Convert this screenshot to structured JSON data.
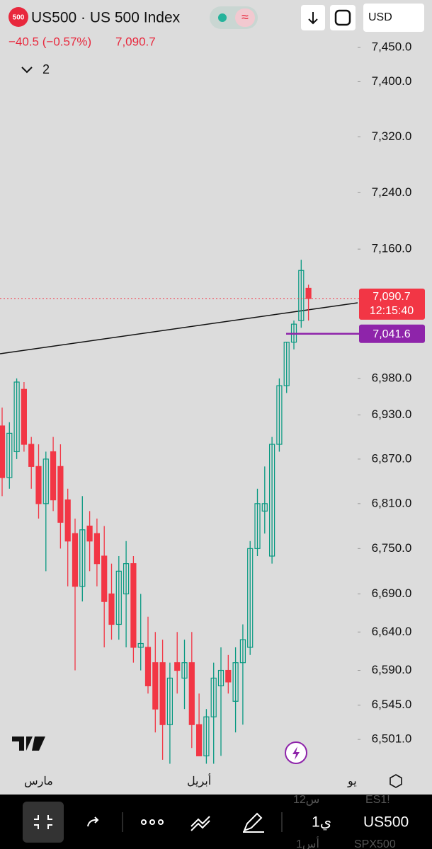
{
  "header": {
    "badge": "500",
    "title": "US500 · US 500 Index",
    "change": "−40.5 (−0.57%)",
    "price": "7,090.7",
    "indicators": "2",
    "currency": "USD"
  },
  "chart_data": {
    "type": "candlestick",
    "log_scale": true,
    "categories": [
      null,
      null,
      null,
      null,
      null,
      "مارس",
      null,
      null,
      null,
      null,
      null,
      null,
      null,
      null,
      null,
      null,
      null,
      null,
      null,
      null,
      null,
      null,
      null,
      null,
      null,
      null,
      null,
      "أبريل",
      null,
      null,
      null,
      null,
      null,
      null,
      null,
      null,
      null,
      null,
      null,
      null,
      null,
      null,
      null,
      null,
      null,
      null,
      null,
      null,
      "يو"
    ],
    "open": [
      6915,
      6845,
      6880,
      6965,
      6890,
      6860,
      6810,
      6880,
      6860,
      6815,
      6770,
      6700,
      6780,
      6770,
      6740,
      6690,
      6650,
      6690,
      6730,
      6620,
      6620,
      6600,
      6600,
      6520,
      6600,
      6580,
      6600,
      6520,
      6480,
      6530,
      6570,
      6590,
      6550,
      6600,
      6620,
      6750,
      6800,
      6740,
      6890,
      6970,
      7030,
      7060,
      7105,
      null,
      null,
      null,
      null,
      null,
      null
    ],
    "high": [
      6940,
      6920,
      6980,
      6975,
      6900,
      6890,
      6880,
      6900,
      6890,
      6830,
      6790,
      6820,
      6800,
      6790,
      6780,
      6730,
      6740,
      6760,
      6740,
      6690,
      6660,
      6640,
      6630,
      6600,
      6640,
      6630,
      6640,
      6560,
      6540,
      6600,
      6620,
      6610,
      6620,
      6650,
      6760,
      6830,
      6860,
      6900,
      6980,
      7030,
      7060,
      7145,
      7110,
      null,
      null,
      null,
      null,
      null,
      null
    ],
    "low": [
      6820,
      6830,
      6870,
      6880,
      6830,
      6790,
      6720,
      6800,
      6750,
      6700,
      6590,
      6680,
      6720,
      6700,
      6620,
      6630,
      6630,
      6620,
      6600,
      6590,
      6560,
      6510,
      6475,
      6470,
      6560,
      6540,
      6490,
      6490,
      6470,
      6470,
      6480,
      6560,
      6510,
      6520,
      6610,
      6740,
      6770,
      6730,
      6880,
      6960,
      7020,
      7050,
      7060,
      null,
      null,
      null,
      null,
      null,
      null
    ],
    "close": [
      6845,
      6905,
      6975,
      6890,
      6860,
      6810,
      6870,
      6815,
      6785,
      6760,
      6700,
      6775,
      6760,
      6730,
      6680,
      6650,
      6720,
      6730,
      6620,
      6625,
      6570,
      6540,
      6520,
      6580,
      6590,
      6600,
      6520,
      6480,
      6530,
      6580,
      6590,
      6575,
      6600,
      6630,
      6750,
      6810,
      6810,
      6890,
      6970,
      7030,
      7055,
      7130,
      7090.7,
      null,
      null,
      null,
      null,
      null,
      null
    ],
    "up_color": "#089981",
    "down_color": "#f23645",
    "ylim": [
      6465,
      7520
    ],
    "yticks": [
      {
        "value": 6501,
        "label": "6,501.0"
      },
      {
        "value": 6545,
        "label": "6,545.0"
      },
      {
        "value": 6590,
        "label": "6,590.0"
      },
      {
        "value": 6640,
        "label": "6,640.0"
      },
      {
        "value": 6690,
        "label": "6,690.0"
      },
      {
        "value": 6750,
        "label": "6,750.0"
      },
      {
        "value": 6810,
        "label": "6,810.0"
      },
      {
        "value": 6870,
        "label": "6,870.0"
      },
      {
        "value": 6930,
        "label": "6,930.0"
      },
      {
        "value": 6980,
        "label": "6,980.0"
      },
      {
        "value": 7160,
        "label": "7,160.0"
      },
      {
        "value": 7240,
        "label": "7,240.0"
      },
      {
        "value": 7320,
        "label": "7,320.0"
      },
      {
        "value": 7400,
        "label": "7,400.0"
      },
      {
        "value": 7450,
        "label": "7,450.0"
      }
    ],
    "last_price": {
      "value": 7090.7,
      "label": "7,090.7"
    },
    "countdown": "12:15:40",
    "alert_line": {
      "value": 7041.6,
      "label": "7,041.6"
    }
  },
  "toolbar": {
    "symbol": "US500",
    "interval": "1ي",
    "faded_symbol_1": "ES1!",
    "faded_interval_1": "12س",
    "faded_symbol_2": "SPX500",
    "faded_interval_2": "1أس"
  }
}
